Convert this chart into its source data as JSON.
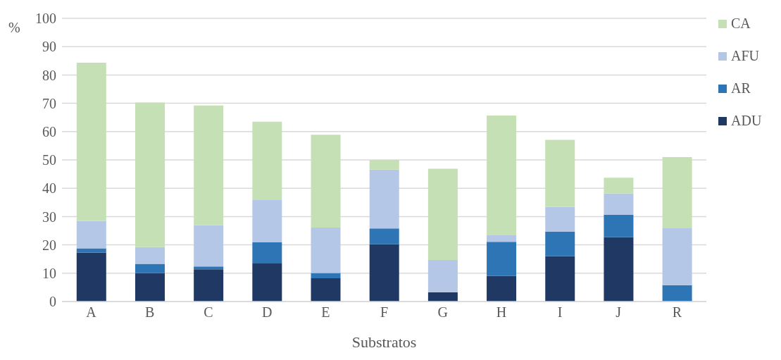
{
  "chart_data": {
    "type": "bar",
    "stacked": true,
    "xlabel": "Substratos",
    "ylabel": "%",
    "categories": [
      "A",
      "B",
      "C",
      "D",
      "E",
      "F",
      "G",
      "H",
      "I",
      "J",
      "R"
    ],
    "series": [
      {
        "name": "ADU",
        "color": "#1f3864",
        "values": [
          17.3,
          10,
          11.4,
          13.6,
          8.2,
          20.2,
          3.3,
          9.0,
          16.0,
          22.7,
          0
        ]
      },
      {
        "name": "AR",
        "color": "#2e75b6",
        "values": [
          1.5,
          3.3,
          1.0,
          7.3,
          1.9,
          5.6,
          0,
          12.1,
          8.6,
          7.9,
          5.8
        ]
      },
      {
        "name": "AFU",
        "color": "#b4c7e7",
        "values": [
          9.7,
          5.9,
          14.6,
          14.9,
          16.0,
          20.8,
          11.4,
          2.3,
          8.8,
          7.6,
          20.1
        ]
      },
      {
        "name": "CA",
        "color": "#c5e0b4",
        "values": [
          55.8,
          51.1,
          42.2,
          27.7,
          32.8,
          3.4,
          32.2,
          42.3,
          23.7,
          5.5,
          25.1
        ]
      }
    ],
    "ylim": [
      0,
      100
    ],
    "yticks": [
      0,
      10,
      20,
      30,
      40,
      50,
      60,
      70,
      80,
      90,
      100
    ],
    "grid": "y",
    "legend": "right"
  }
}
